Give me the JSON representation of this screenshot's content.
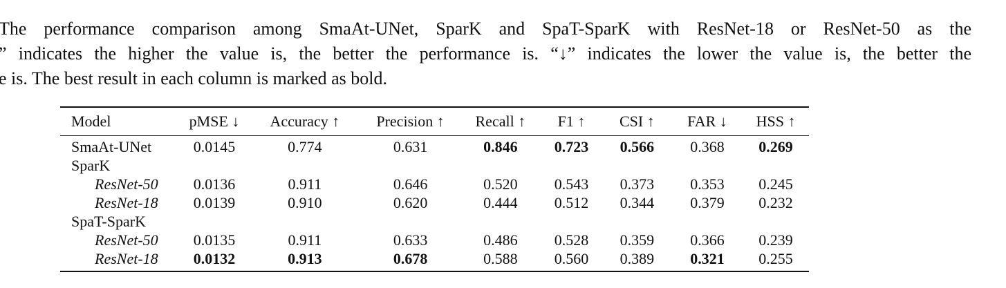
{
  "caption": {
    "line1": "The performance comparison among SmaAt-UNet, SparK and SpaT-SparK with ResNet-18 or ResNet-50 as the",
    "line2": "” indicates the higher the value is, the better the performance is. “↓” indicates the lower the value is, the better the",
    "line3": "e is. The best result in each column is marked as bold."
  },
  "table": {
    "headers": [
      "Model",
      "pMSE ↓",
      "Accuracy ↑",
      "Precision ↑",
      "Recall ↑",
      "F1 ↑",
      "CSI ↑",
      "FAR ↓",
      "HSS ↑"
    ],
    "rows": [
      {
        "model": "SmaAt-UNet",
        "values": [
          "0.0145",
          "0.774",
          "0.631",
          "0.846",
          "0.723",
          "0.566",
          "0.368",
          "0.269"
        ]
      },
      {
        "model": "SparK",
        "values": []
      },
      {
        "model": "ResNet-50",
        "values": [
          "0.0136",
          "0.911",
          "0.646",
          "0.520",
          "0.543",
          "0.373",
          "0.353",
          "0.245"
        ]
      },
      {
        "model": "ResNet-18",
        "values": [
          "0.0139",
          "0.910",
          "0.620",
          "0.444",
          "0.512",
          "0.344",
          "0.379",
          "0.232"
        ]
      },
      {
        "model": "SpaT-SparK",
        "values": []
      },
      {
        "model": "ResNet-50",
        "values": [
          "0.0135",
          "0.911",
          "0.633",
          "0.486",
          "0.528",
          "0.359",
          "0.366",
          "0.239"
        ]
      },
      {
        "model": "ResNet-18",
        "values": [
          "0.0132",
          "0.913",
          "0.678",
          "0.588",
          "0.560",
          "0.389",
          "0.321",
          "0.255"
        ]
      }
    ]
  }
}
